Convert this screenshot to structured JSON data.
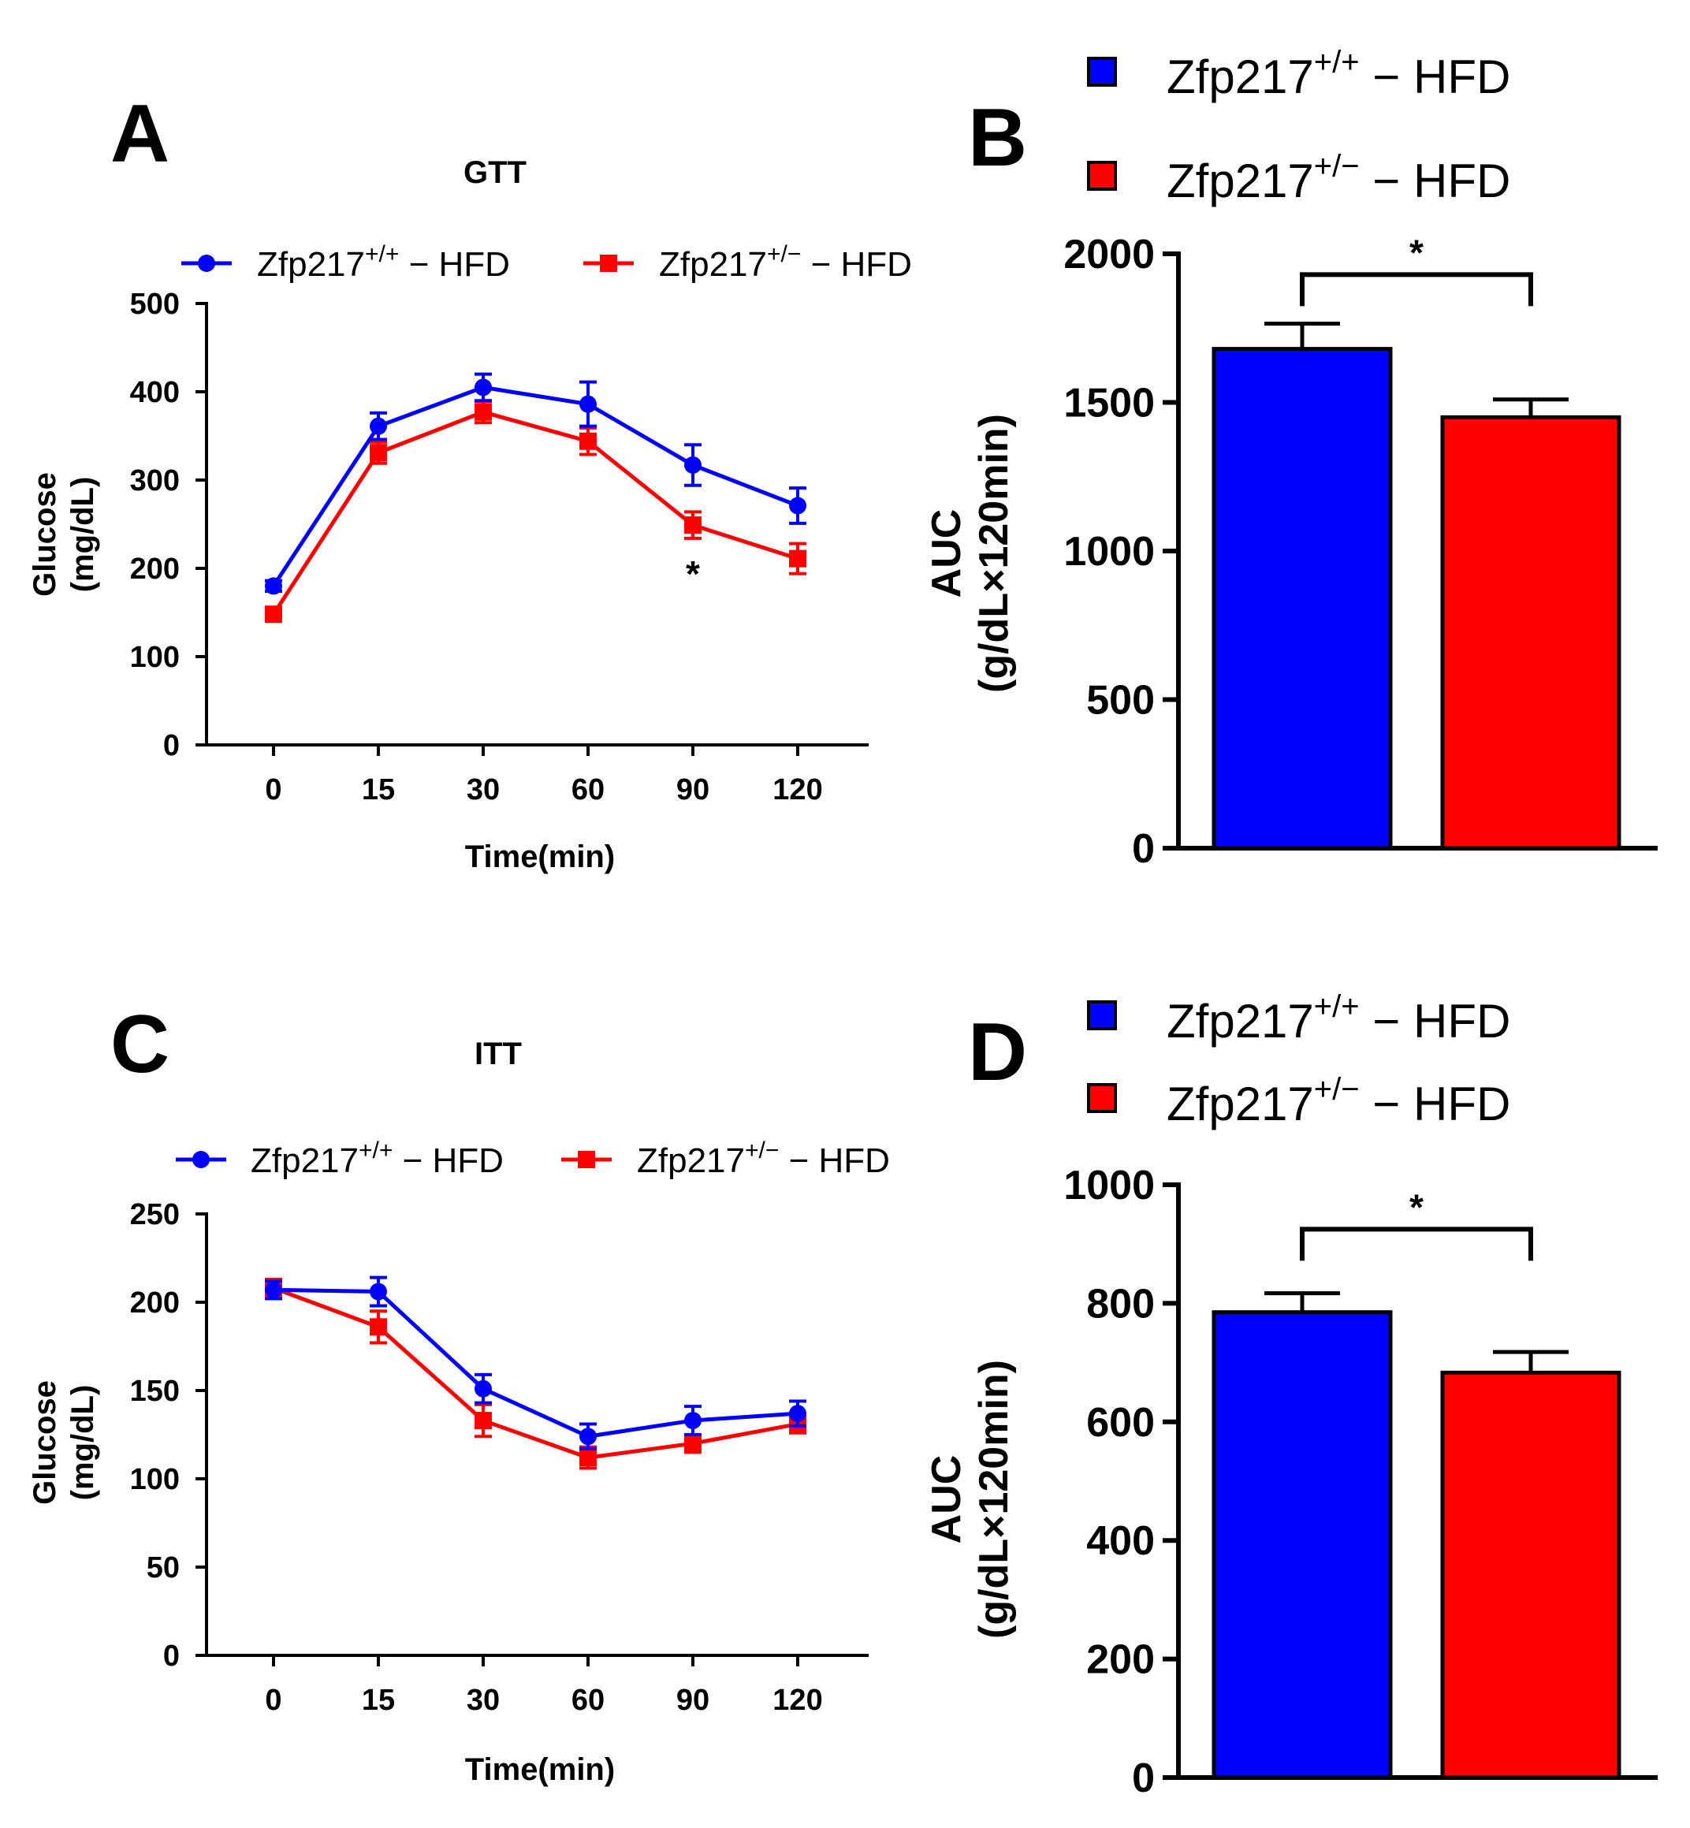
{
  "series_names": [
    "Zfp217+/+ − HFD",
    "Zfp217+/− − HFD"
  ],
  "legend": {
    "base": "Zfp217",
    "wt_sup": "+/+",
    "het_sup": "+/−",
    "suffix": " − HFD"
  },
  "colors": {
    "wt": "#0000ff",
    "het": "#ff0000",
    "axis": "#000000"
  },
  "chart_data": [
    {
      "id": "A",
      "type": "line",
      "panel_letter": "A",
      "title": "GTT",
      "xlabel": "Time(min)",
      "ylabel_line1": "Glucose",
      "ylabel_line2": "(mg/dL)",
      "categories": [
        "0",
        "15",
        "30",
        "60",
        "90",
        "120"
      ],
      "ylim": [
        0,
        500
      ],
      "yticks": [
        0,
        100,
        200,
        300,
        400,
        500
      ],
      "series": [
        {
          "name": "Zfp217+/+ − HFD",
          "values": [
            180,
            361,
            405,
            386,
            317,
            271
          ],
          "errors": [
            6,
            15,
            15,
            25,
            23,
            20
          ]
        },
        {
          "name": "Zfp217+/− − HFD",
          "values": [
            148,
            331,
            377,
            344,
            249,
            211
          ],
          "errors": [
            7,
            12,
            12,
            15,
            15,
            17
          ]
        }
      ],
      "annotations": [
        {
          "text": "*",
          "category": "90"
        }
      ]
    },
    {
      "id": "B",
      "type": "bar",
      "panel_letter": "B",
      "ylabel_line1": "AUC",
      "ylabel_line2": "(g/dL×120min)",
      "categories": [
        "Zfp217+/+ − HFD",
        "Zfp217+/− − HFD"
      ],
      "values": [
        1680,
        1450
      ],
      "errors": [
        85,
        60
      ],
      "ylim": [
        0,
        2000
      ],
      "yticks": [
        0,
        500,
        1000,
        1500,
        2000
      ],
      "significance": {
        "text": "*",
        "bracket_at": 1930
      }
    },
    {
      "id": "C",
      "type": "line",
      "panel_letter": "C",
      "title": "ITT",
      "xlabel": "Time(min)",
      "ylabel_line1": "Glucose",
      "ylabel_line2": "(mg/dL)",
      "categories": [
        "0",
        "15",
        "30",
        "60",
        "90",
        "120"
      ],
      "ylim": [
        0,
        250
      ],
      "yticks": [
        0,
        50,
        100,
        150,
        200,
        250
      ],
      "series": [
        {
          "name": "Zfp217+/+ − HFD",
          "values": [
            207,
            206,
            151,
            124,
            133,
            137
          ],
          "errors": [
            5,
            8,
            8,
            7,
            8,
            7
          ]
        },
        {
          "name": "Zfp217+/− − HFD",
          "values": [
            208,
            186,
            133,
            112,
            120,
            131
          ],
          "errors": [
            5,
            9,
            9,
            6,
            5,
            5
          ]
        }
      ]
    },
    {
      "id": "D",
      "type": "bar",
      "panel_letter": "D",
      "ylabel_line1": "AUC",
      "ylabel_line2": "(g/dL×120min)",
      "categories": [
        "Zfp217+/+ − HFD",
        "Zfp217+/− − HFD"
      ],
      "values": [
        785,
        683
      ],
      "errors": [
        32,
        35
      ],
      "ylim": [
        0,
        1000
      ],
      "yticks": [
        0,
        200,
        400,
        600,
        800,
        1000
      ],
      "significance": {
        "text": "*",
        "bracket_at": 925
      }
    }
  ]
}
